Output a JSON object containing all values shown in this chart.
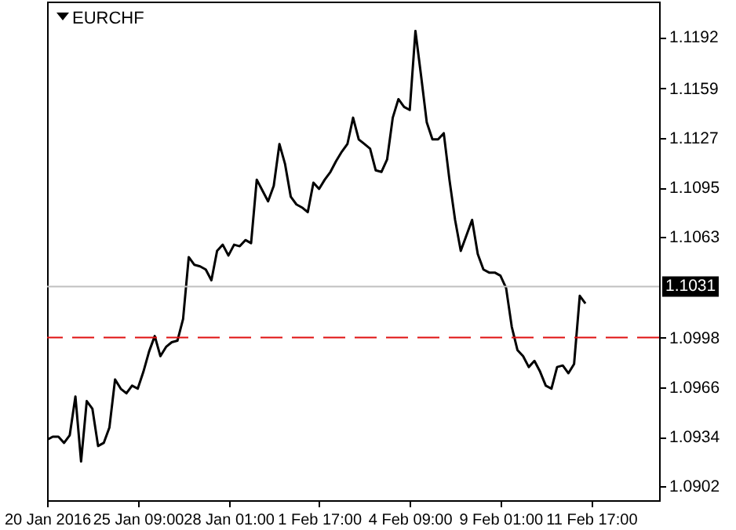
{
  "chart_data": {
    "type": "line",
    "title": "EURCHF",
    "categories": [
      "20 Jan 2016",
      null,
      null,
      null,
      null,
      null,
      null,
      null,
      null,
      null,
      null,
      null,
      null,
      null,
      null,
      null,
      "25 Jan 09:00",
      null,
      null,
      null,
      null,
      null,
      null,
      null,
      null,
      null,
      null,
      null,
      null,
      null,
      null,
      null,
      "28 Jan 01:00",
      null,
      null,
      null,
      null,
      null,
      null,
      null,
      null,
      null,
      null,
      null,
      null,
      null,
      null,
      null,
      "1 Feb 17:00",
      null,
      null,
      null,
      null,
      null,
      null,
      null,
      null,
      null,
      null,
      null,
      null,
      null,
      null,
      null,
      "4 Feb 09:00",
      null,
      null,
      null,
      null,
      null,
      null,
      null,
      null,
      null,
      null,
      null,
      null,
      null,
      null,
      null,
      "9 Feb 01:00",
      null,
      null,
      null,
      null,
      null,
      null,
      null,
      null,
      null,
      null,
      null,
      null,
      null,
      null,
      null,
      "11 Feb 17:00",
      null,
      null,
      null,
      null,
      null,
      null,
      null,
      null,
      null,
      null,
      null,
      null
    ],
    "series": [
      {
        "color": "#000000",
        "values": [
          1.0932,
          1.0934,
          1.0934,
          1.093,
          1.0935,
          1.096,
          1.0918,
          1.0957,
          1.0952,
          1.0928,
          1.093,
          1.094,
          1.0971,
          1.0965,
          1.0962,
          1.0967,
          1.0965,
          1.0976,
          1.0989,
          1.0999,
          1.0986,
          1.0992,
          1.0995,
          1.0996,
          1.101,
          1.105,
          1.1045,
          1.1044,
          1.1042,
          1.1035,
          1.1054,
          1.1058,
          1.1051,
          1.1058,
          1.1057,
          1.1061,
          1.1059,
          1.11,
          1.1093,
          1.1086,
          1.1096,
          1.1123,
          1.111,
          1.1089,
          1.1084,
          1.1082,
          1.1079,
          1.1098,
          1.1094,
          1.11,
          1.1105,
          1.1112,
          1.1118,
          1.1123,
          1.114,
          1.1126,
          1.1123,
          1.112,
          1.1106,
          1.1105,
          1.1113,
          1.114,
          1.1152,
          1.1147,
          1.1145,
          1.1196,
          1.1167,
          1.1137,
          1.1126,
          1.1126,
          1.113,
          1.11,
          1.1074,
          1.1054,
          1.1064,
          1.1074,
          1.1052,
          1.1042,
          1.104,
          1.104,
          1.1038,
          1.103,
          1.1005,
          1.099,
          1.0986,
          1.0979,
          1.0983,
          1.0976,
          1.0967,
          1.0965,
          1.0979,
          1.098,
          1.0975,
          1.0981,
          1.1025,
          1.102,
          null,
          null,
          null,
          null,
          null,
          null,
          null,
          null,
          null,
          null,
          null,
          null,
          null
        ]
      }
    ],
    "ylim": [
      1.0893,
      1.1215
    ],
    "yticks": [
      1.0902,
      1.0934,
      1.0966,
      1.0998,
      1.1063,
      1.1095,
      1.1127,
      1.1159,
      1.1192
    ],
    "ref_lines": [
      {
        "axis": "y",
        "value": 1.1031,
        "label": "1.1031",
        "color": "#c0c0c0"
      },
      {
        "axis": "y",
        "value": 1.0998,
        "color": "#e01010",
        "line_style": "dashed"
      }
    ],
    "grid": false,
    "legend": false
  }
}
